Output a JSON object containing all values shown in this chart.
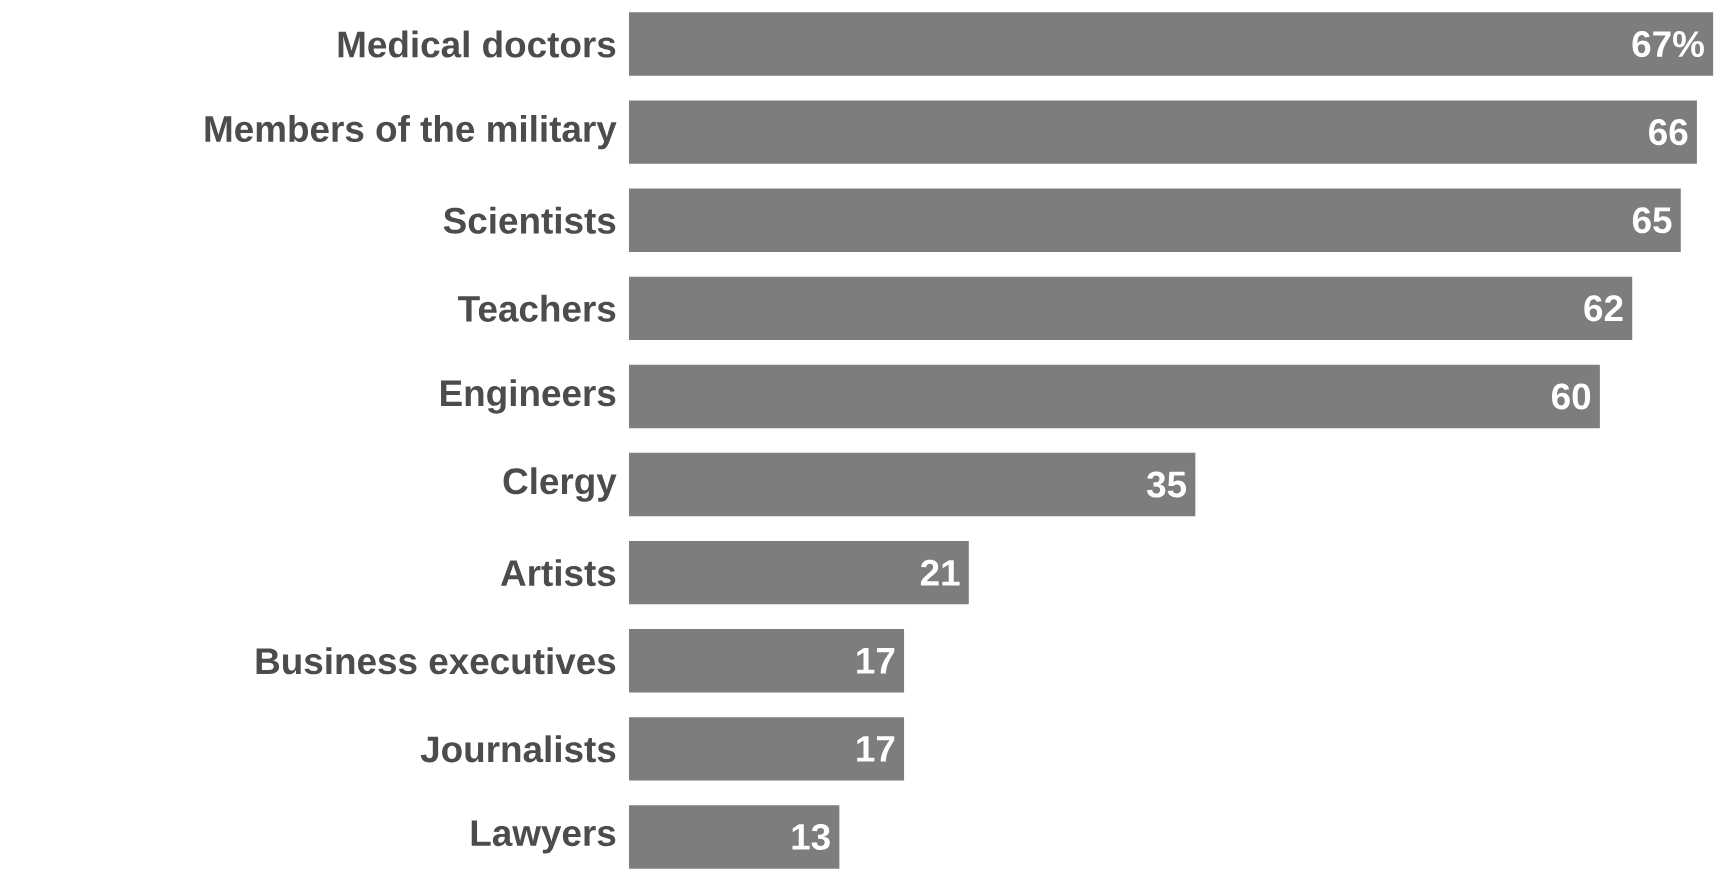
{
  "chart_data": {
    "type": "bar",
    "orientation": "horizontal",
    "categories": [
      "Medical doctors",
      "Members of the military",
      "Scientists",
      "Teachers",
      "Engineers",
      "Clergy",
      "Artists",
      "Business executives",
      "Journalists",
      "Lawyers"
    ],
    "values": [
      67,
      66,
      65,
      62,
      60,
      35,
      21,
      17,
      17,
      13
    ],
    "value_labels": [
      "67%",
      "66",
      "65",
      "62",
      "60",
      "35",
      "21",
      "17",
      "17",
      "13"
    ],
    "color": "#7d7d7d"
  }
}
